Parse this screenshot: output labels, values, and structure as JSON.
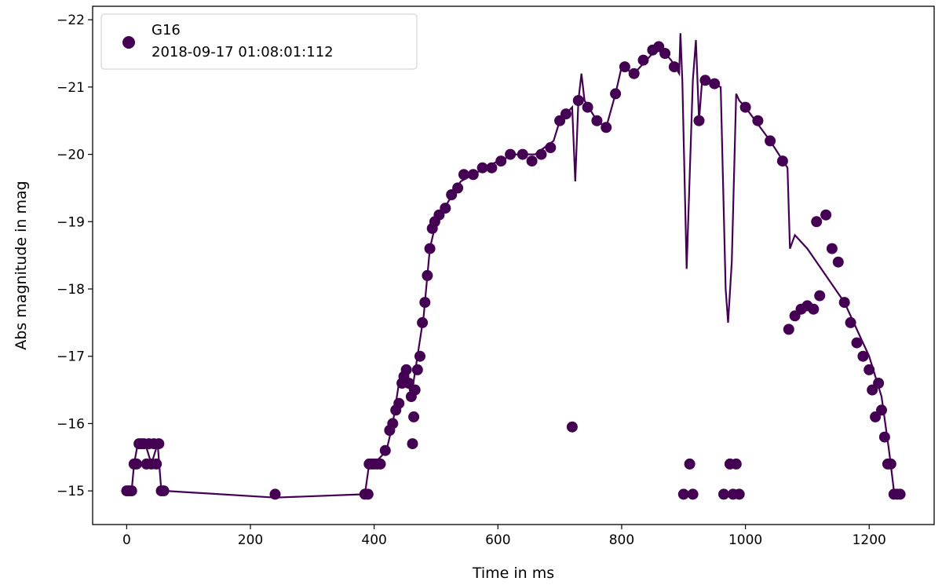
{
  "chart_data": {
    "type": "scatter",
    "xlabel": "Time in ms",
    "ylabel": "Abs magnitude in mag",
    "xlim": [
      -55,
      1305
    ],
    "ylim": [
      -14.5,
      -22.2
    ],
    "y_inverted": true,
    "xticks": [
      0,
      200,
      400,
      600,
      800,
      1000,
      1200
    ],
    "yticks": [
      -15,
      -16,
      -17,
      -18,
      -19,
      -20,
      -21,
      -22
    ],
    "grid": false,
    "legend": {
      "placement": "top-left",
      "entries": [
        "G16",
        "2018-09-17 01:08:01:112"
      ]
    },
    "series": [
      {
        "name": "G16",
        "color": "#440154",
        "line": [
          [
            0,
            -15
          ],
          [
            8,
            -15
          ],
          [
            12,
            -15.4
          ],
          [
            18,
            -15.7
          ],
          [
            30,
            -15.7
          ],
          [
            40,
            -15.4
          ],
          [
            50,
            -15.7
          ],
          [
            56,
            -15
          ],
          [
            62,
            -15
          ],
          [
            240,
            -14.9
          ],
          [
            385,
            -14.95
          ],
          [
            392,
            -15.4
          ],
          [
            400,
            -15.4
          ],
          [
            420,
            -15.6
          ],
          [
            430,
            -16
          ],
          [
            440,
            -16.6
          ],
          [
            450,
            -16.8
          ],
          [
            460,
            -16.4
          ],
          [
            470,
            -17
          ],
          [
            480,
            -17.6
          ],
          [
            490,
            -18.6
          ],
          [
            500,
            -19
          ],
          [
            520,
            -19.3
          ],
          [
            540,
            -19.6
          ],
          [
            560,
            -19.7
          ],
          [
            580,
            -19.8
          ],
          [
            600,
            -19.9
          ],
          [
            630,
            -20
          ],
          [
            660,
            -20
          ],
          [
            690,
            -20.2
          ],
          [
            700,
            -20.5
          ],
          [
            710,
            -20.6
          ],
          [
            720,
            -20.7
          ],
          [
            725,
            -19.6
          ],
          [
            730,
            -20.8
          ],
          [
            735,
            -21.2
          ],
          [
            740,
            -20.8
          ],
          [
            760,
            -20.5
          ],
          [
            775,
            -20.4
          ],
          [
            790,
            -20.9
          ],
          [
            800,
            -21.3
          ],
          [
            820,
            -21.2
          ],
          [
            840,
            -21.4
          ],
          [
            860,
            -21.6
          ],
          [
            880,
            -21.4
          ],
          [
            893,
            -21.2
          ],
          [
            895,
            -21.8
          ],
          [
            898,
            -21.1
          ],
          [
            905,
            -18.3
          ],
          [
            915,
            -21.1
          ],
          [
            920,
            -21.7
          ],
          [
            925,
            -20.5
          ],
          [
            930,
            -21.1
          ],
          [
            960,
            -21
          ],
          [
            968,
            -18
          ],
          [
            972,
            -17.5
          ],
          [
            978,
            -18.4
          ],
          [
            985,
            -20.9
          ],
          [
            990,
            -20.8
          ],
          [
            1000,
            -20.7
          ],
          [
            1040,
            -20.2
          ],
          [
            1068,
            -19.8
          ],
          [
            1072,
            -18.6
          ],
          [
            1080,
            -18.8
          ],
          [
            1100,
            -18.6
          ],
          [
            1130,
            -18.2
          ],
          [
            1160,
            -17.8
          ],
          [
            1185,
            -17.3
          ],
          [
            1200,
            -17
          ],
          [
            1220,
            -16.4
          ],
          [
            1232,
            -15.6
          ],
          [
            1240,
            -15
          ],
          [
            1248,
            -15
          ]
        ],
        "points": [
          [
            0,
            -15
          ],
          [
            4,
            -15
          ],
          [
            8,
            -15
          ],
          [
            12,
            -15.4
          ],
          [
            16,
            -15.4
          ],
          [
            20,
            -15.7
          ],
          [
            24,
            -15.7
          ],
          [
            28,
            -15.7
          ],
          [
            32,
            -15.4
          ],
          [
            36,
            -15.7
          ],
          [
            40,
            -15.4
          ],
          [
            44,
            -15.7
          ],
          [
            48,
            -15.4
          ],
          [
            52,
            -15.7
          ],
          [
            56,
            -15
          ],
          [
            60,
            -15
          ],
          [
            240,
            -14.95
          ],
          [
            385,
            -14.95
          ],
          [
            390,
            -14.95
          ],
          [
            392,
            -15.4
          ],
          [
            396,
            -15.4
          ],
          [
            400,
            -15.4
          ],
          [
            405,
            -15.4
          ],
          [
            410,
            -15.4
          ],
          [
            418,
            -15.6
          ],
          [
            425,
            -15.9
          ],
          [
            430,
            -16
          ],
          [
            435,
            -16.2
          ],
          [
            440,
            -16.3
          ],
          [
            445,
            -16.6
          ],
          [
            448,
            -16.7
          ],
          [
            452,
            -16.8
          ],
          [
            456,
            -16.6
          ],
          [
            460,
            -16.4
          ],
          [
            462,
            -15.7
          ],
          [
            464,
            -16.1
          ],
          [
            466,
            -16.5
          ],
          [
            470,
            -16.8
          ],
          [
            474,
            -17
          ],
          [
            478,
            -17.5
          ],
          [
            482,
            -17.8
          ],
          [
            486,
            -18.2
          ],
          [
            490,
            -18.6
          ],
          [
            494,
            -18.9
          ],
          [
            498,
            -19
          ],
          [
            505,
            -19.1
          ],
          [
            515,
            -19.2
          ],
          [
            525,
            -19.4
          ],
          [
            535,
            -19.5
          ],
          [
            545,
            -19.7
          ],
          [
            560,
            -19.7
          ],
          [
            575,
            -19.8
          ],
          [
            590,
            -19.8
          ],
          [
            605,
            -19.9
          ],
          [
            620,
            -20
          ],
          [
            640,
            -20
          ],
          [
            655,
            -19.9
          ],
          [
            670,
            -20
          ],
          [
            685,
            -20.1
          ],
          [
            700,
            -20.5
          ],
          [
            710,
            -20.6
          ],
          [
            720,
            -15.95
          ],
          [
            730,
            -20.8
          ],
          [
            745,
            -20.7
          ],
          [
            760,
            -20.5
          ],
          [
            775,
            -20.4
          ],
          [
            790,
            -20.9
          ],
          [
            805,
            -21.3
          ],
          [
            820,
            -21.2
          ],
          [
            835,
            -21.4
          ],
          [
            850,
            -21.55
          ],
          [
            860,
            -21.6
          ],
          [
            870,
            -21.5
          ],
          [
            885,
            -21.3
          ],
          [
            900,
            -14.95
          ],
          [
            910,
            -15.4
          ],
          [
            915,
            -14.95
          ],
          [
            925,
            -20.5
          ],
          [
            935,
            -21.1
          ],
          [
            950,
            -21.05
          ],
          [
            965,
            -14.95
          ],
          [
            975,
            -15.4
          ],
          [
            980,
            -14.95
          ],
          [
            985,
            -15.4
          ],
          [
            990,
            -14.95
          ],
          [
            1000,
            -20.7
          ],
          [
            1020,
            -20.5
          ],
          [
            1040,
            -20.2
          ],
          [
            1060,
            -19.9
          ],
          [
            1070,
            -17.4
          ],
          [
            1080,
            -17.6
          ],
          [
            1090,
            -17.7
          ],
          [
            1100,
            -17.75
          ],
          [
            1110,
            -17.7
          ],
          [
            1115,
            -19
          ],
          [
            1120,
            -17.9
          ],
          [
            1130,
            -19.1
          ],
          [
            1140,
            -18.6
          ],
          [
            1150,
            -18.4
          ],
          [
            1160,
            -17.8
          ],
          [
            1170,
            -17.5
          ],
          [
            1180,
            -17.2
          ],
          [
            1190,
            -17
          ],
          [
            1200,
            -16.8
          ],
          [
            1205,
            -16.5
          ],
          [
            1210,
            -16.1
          ],
          [
            1215,
            -16.6
          ],
          [
            1220,
            -16.2
          ],
          [
            1225,
            -15.8
          ],
          [
            1230,
            -15.4
          ],
          [
            1235,
            -15.4
          ],
          [
            1240,
            -14.95
          ],
          [
            1245,
            -14.95
          ],
          [
            1250,
            -14.95
          ]
        ]
      }
    ]
  }
}
